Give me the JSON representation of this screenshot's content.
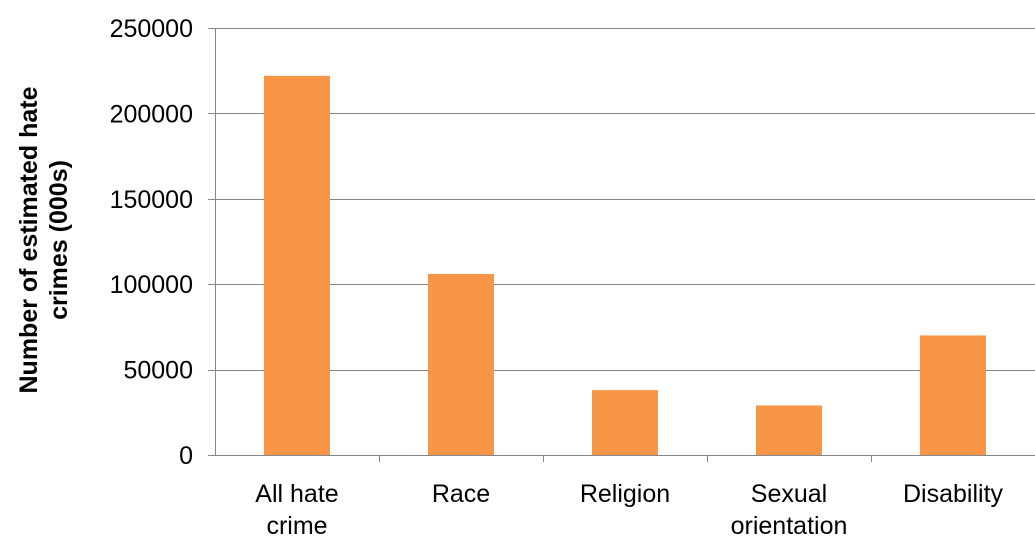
{
  "chart_data": {
    "type": "bar",
    "title": "",
    "xlabel": "",
    "ylabel": "Number of estimated hate crimes (000s)",
    "ylabel_lines": [
      "Number of estimated hate",
      "crimes (000s)"
    ],
    "categories": [
      "All hate crime",
      "Race",
      "Religion",
      "Sexual orientation",
      "Disability"
    ],
    "category_lines": [
      [
        "All hate",
        "crime"
      ],
      [
        "Race"
      ],
      [
        "Religion"
      ],
      [
        "Sexual",
        "orientation"
      ],
      [
        "Disability"
      ]
    ],
    "values": [
      222000,
      106000,
      38000,
      29000,
      70000
    ],
    "ylim": [
      0,
      250000
    ],
    "yticks": [
      0,
      50000,
      100000,
      150000,
      200000,
      250000
    ],
    "grid": true,
    "legend": "none",
    "bar_color": "#F79646",
    "grid_color": "#868686"
  }
}
